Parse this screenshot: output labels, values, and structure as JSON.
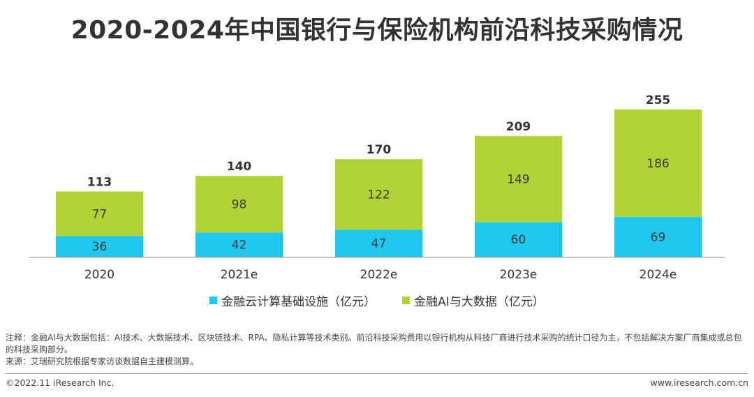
{
  "title": "2020-2024年中国银行与保险机构前沿科技采购情况",
  "colors": {
    "cloud": "#1ec8ef",
    "ai": "#b1d234",
    "axis": "#7f7f7f"
  },
  "chart_data": {
    "type": "bar",
    "stacked": true,
    "categories": [
      "2020",
      "2021e",
      "2022e",
      "2023e",
      "2024e"
    ],
    "series": [
      {
        "name": "金融云计算基础设施（亿元）",
        "values": [
          36,
          42,
          47,
          60,
          69
        ]
      },
      {
        "name": "金融AI与大数据（亿元）",
        "values": [
          77,
          98,
          122,
          149,
          186
        ]
      }
    ],
    "totals": [
      113,
      140,
      170,
      209,
      255
    ],
    "legend_position": "bottom",
    "grid": false
  },
  "notes": {
    "note": "注释：金融AI与大数据包括：AI技术、大数据技术、区块链技术、RPA、隐私计算等技术类别。前沿科技采购费用以银行机构从科技厂商进行技术采购的统计口径为主，不包括解决方案厂商集成或总包的科技采购部分。",
    "source": "来源：艾瑞研究院根据专家访谈数据自主建模测算。"
  },
  "footer": {
    "copyright": "©2022.11 iResearch Inc.",
    "website": "www.iresearch.com.cn"
  }
}
